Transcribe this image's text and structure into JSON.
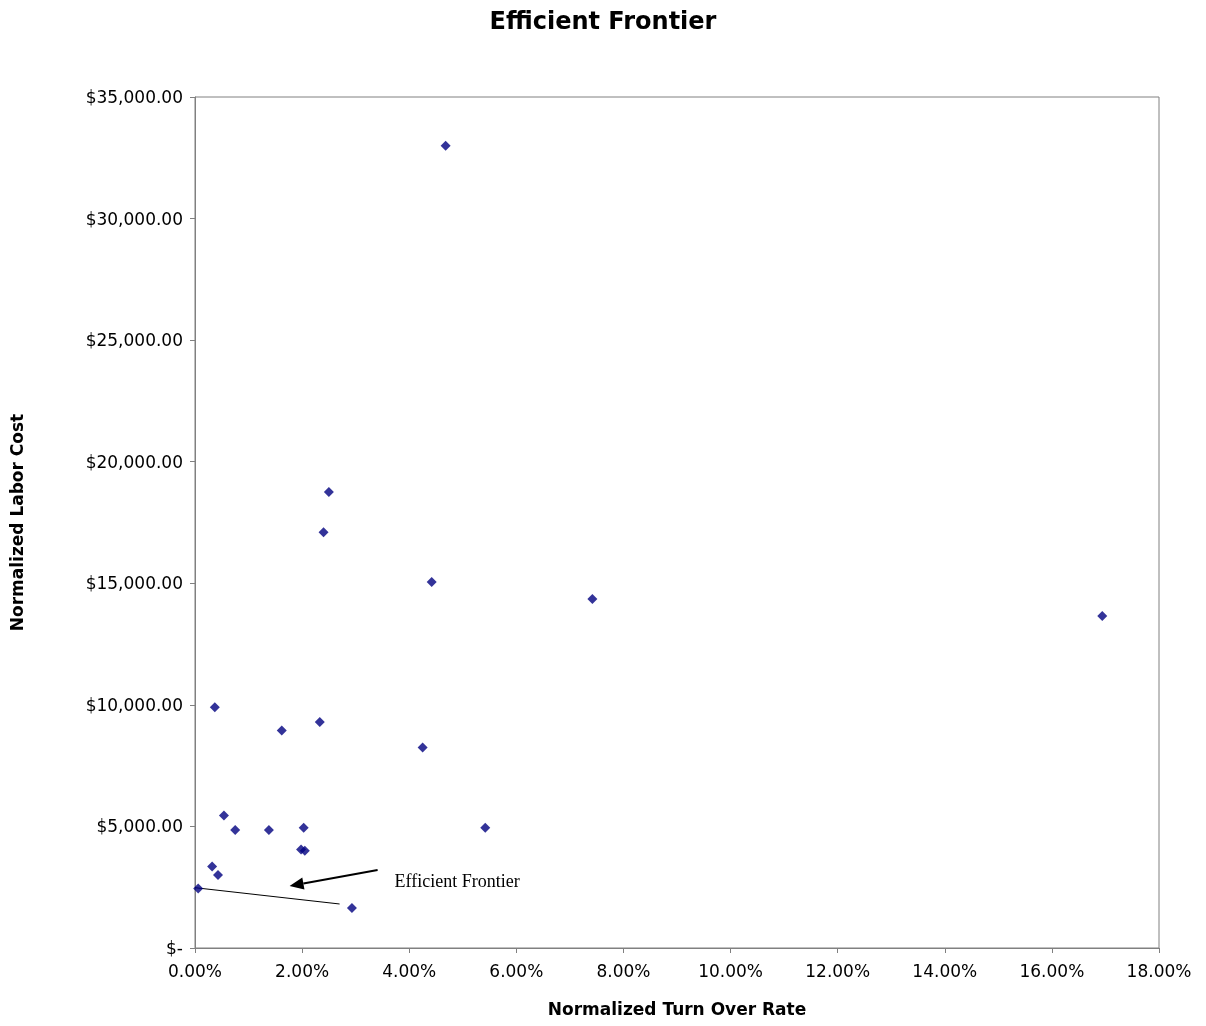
{
  "chart_data": {
    "type": "scatter",
    "title": "Efficient Frontier",
    "xlabel": "Normalized Turn Over Rate",
    "ylabel": "Normalized Labor Cost",
    "series": [
      {
        "color": "#000080",
        "marker": "diamond",
        "x": [
          4.68,
          2.5,
          2.4,
          4.42,
          7.42,
          16.94,
          0.37,
          2.33,
          1.62,
          4.25,
          0.54,
          0.75,
          1.38,
          2.03,
          5.42,
          1.98,
          2.05,
          0.32,
          0.43,
          0.06,
          2.93
        ],
        "values": [
          33000,
          18750,
          17100,
          15050,
          14350,
          13650,
          9900,
          9300,
          8950,
          8250,
          5450,
          4850,
          4850,
          4950,
          4950,
          4050,
          4000,
          3350,
          3000,
          2450,
          1650
        ]
      },
      {
        "type": "line",
        "color": "#000000",
        "marker": "none",
        "x": [
          0,
          2.7
        ],
        "values": [
          2480,
          1810
        ]
      }
    ],
    "annotations": [
      "Efficient Frontier"
    ],
    "xlim": [
      0,
      18
    ],
    "ylim": [
      0,
      35000
    ],
    "xticks": [
      {
        "value": 0,
        "label": "0.00%"
      },
      {
        "value": 2,
        "label": "2.00%"
      },
      {
        "value": 4,
        "label": "4.00%"
      },
      {
        "value": 6,
        "label": "6.00%"
      },
      {
        "value": 8,
        "label": "8.00%"
      },
      {
        "value": 10,
        "label": "10.00%"
      },
      {
        "value": 12,
        "label": "12.00%"
      },
      {
        "value": 14,
        "label": "14.00%"
      },
      {
        "value": 16,
        "label": "16.00%"
      },
      {
        "value": 18,
        "label": "18.00%"
      }
    ],
    "yticks": [
      {
        "value": 0,
        "label": "$-"
      },
      {
        "value": 5000,
        "label": "$5,000.00"
      },
      {
        "value": 10000,
        "label": "$10,000.00"
      },
      {
        "value": 15000,
        "label": "$15,000.00"
      },
      {
        "value": 20000,
        "label": "$20,000.00"
      },
      {
        "value": 25000,
        "label": "$25,000.00"
      },
      {
        "value": 30000,
        "label": "$30,000.00"
      },
      {
        "value": 35000,
        "label": "$35,000.00"
      }
    ],
    "grid": false
  }
}
